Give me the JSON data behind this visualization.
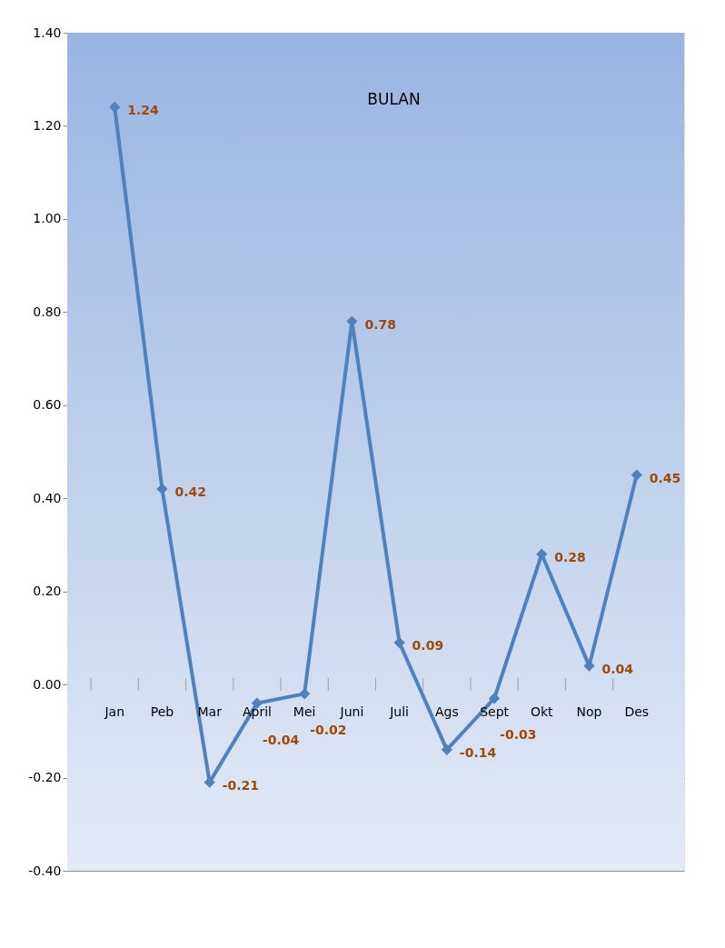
{
  "chart_data": {
    "type": "line",
    "title": "BULAN",
    "categories": [
      "Jan",
      "Peb",
      "Mar",
      "April",
      "Mei",
      "Juni",
      "Juli",
      "Ags",
      "Sept",
      "Okt",
      "Nop",
      "Des"
    ],
    "series": [
      {
        "color": "#4f81bd",
        "values": [
          1.24,
          0.42,
          -0.21,
          -0.04,
          -0.02,
          0.78,
          0.09,
          -0.14,
          -0.03,
          0.28,
          0.04,
          0.45
        ]
      }
    ],
    "ylim": [
      -0.4,
      1.4
    ],
    "yticks": [
      {
        "value": -0.4,
        "label": "-0.40"
      },
      {
        "value": -0.2,
        "label": "-0.20"
      },
      {
        "value": 0,
        "label": "0.00"
      },
      {
        "value": 0.2,
        "label": "0.20"
      },
      {
        "value": 0.4,
        "label": "0.40"
      },
      {
        "value": 0.6,
        "label": "0.60"
      },
      {
        "value": 0.8,
        "label": "0.80"
      },
      {
        "value": 1.0,
        "label": "1.00"
      },
      {
        "value": 1.2,
        "label": "1.20"
      },
      {
        "value": 1.4,
        "label": "1.40"
      }
    ],
    "grid": "y",
    "marker": "diamond",
    "line_style": "solid",
    "data_labels": true
  }
}
